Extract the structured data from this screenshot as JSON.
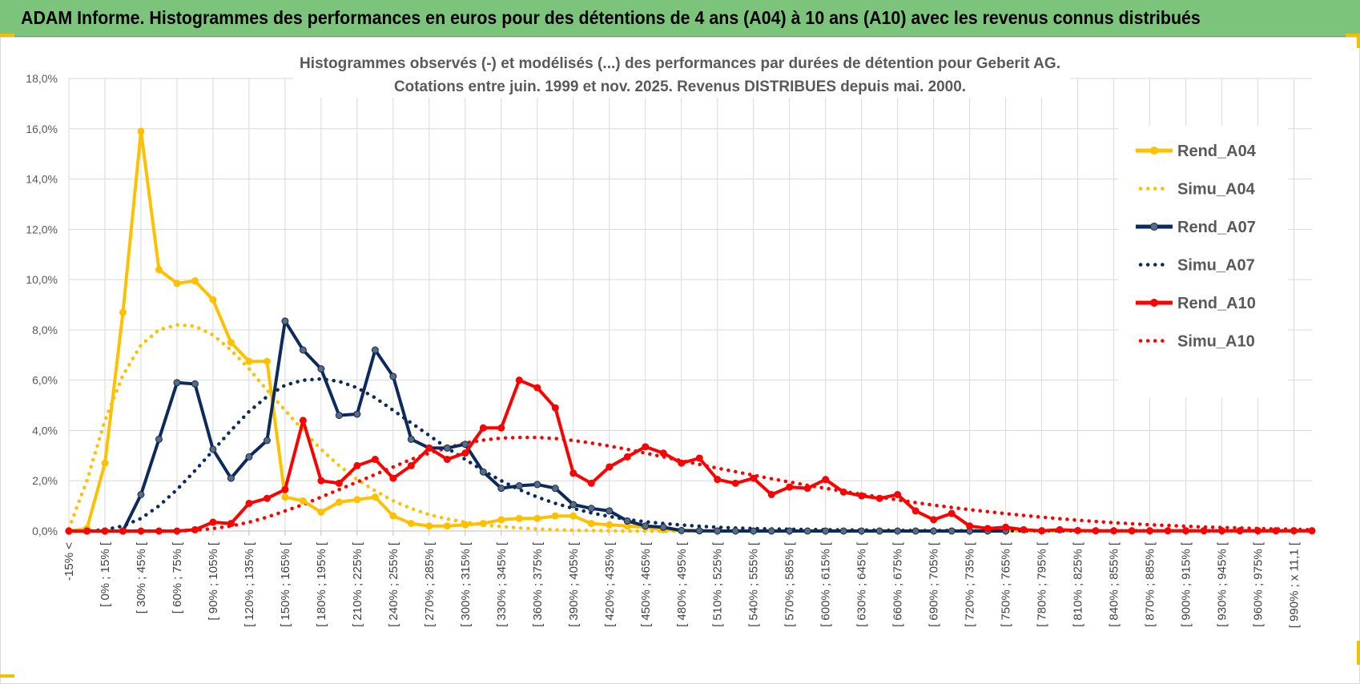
{
  "header": {
    "title": "ADAM Informe. Histogrammes des performances en euros pour des détentions de 4 ans (A04) à 10 ans (A10) avec les revenus connus distribués"
  },
  "colors": {
    "banner": "#7cc47b",
    "Rend_A04": "#ffc000",
    "Simu_A04": "#ffc000",
    "Rend_A07": "#0d2a5c",
    "Simu_A07": "#0d2a5c",
    "Rend_A10": "#ff0000",
    "Simu_A10": "#ff0000",
    "grid": "#d9d9d9"
  },
  "chart_data": {
    "type": "line",
    "title": "Histogrammes observés (-) et modélisés (...) des performances par durées de détention pour Geberit AG.",
    "subtitle": "Cotations entre juin. 1999 et nov. 2025. Revenus DISTRIBUES depuis mai. 2000.",
    "xlabel": "",
    "ylabel": "",
    "ylim": [
      0,
      18
    ],
    "yticks": [
      "0,0%",
      "2,0%",
      "4,0%",
      "6,0%",
      "8,0%",
      "10,0%",
      "12,0%",
      "14,0%",
      "16,0%",
      "18,0%"
    ],
    "grid": true,
    "legend_position": "right",
    "x_tick_labels": [
      "-15% <",
      "[ 0% ; 15% [",
      "[ 30% ; 45% [",
      "[ 60% ; 75% [",
      "[ 90% ; 105% [",
      "[ 120% ; 135% [",
      "[ 150% ; 165% [",
      "[ 180% ; 195% [",
      "[ 210% ; 225% [",
      "[ 240% ; 255% [",
      "[ 270% ; 285% [",
      "[ 300% ; 315% [",
      "[ 330% ; 345% [",
      "[ 360% ; 375% [",
      "[ 390% ; 405% [",
      "[ 420% ; 435% [",
      "[ 450% ; 465% [",
      "[ 480% ; 495% [",
      "[ 510% ; 525% [",
      "[ 540% ; 555% [",
      "[ 570% ; 585% [",
      "[ 600% ; 615% [",
      "[ 630% ; 645% [",
      "[ 660% ; 675% [",
      "[ 690% ; 705% [",
      "[ 720% ; 735% [",
      "[ 750% ; 765% [",
      "[ 780% ; 795% [",
      "[ 810% ; 825% [",
      "[ 840% ; 855% [",
      "[ 870% ; 885% [",
      "[ 900% ; 915% [",
      "[ 930% ; 945% [",
      "[ 960% ; 975% [",
      "[ 990% ; x 11,1 ["
    ],
    "category_count": 70,
    "series": [
      {
        "name": "Rend_A04",
        "style": "solid",
        "markers": true,
        "values": [
          0,
          0.1,
          2.7,
          8.7,
          15.9,
          10.4,
          9.85,
          9.95,
          9.2,
          7.5,
          6.75,
          6.75,
          1.35,
          1.2,
          0.75,
          1.15,
          1.25,
          1.35,
          0.6,
          0.3,
          0.2,
          0.2,
          0.25,
          0.3,
          0.45,
          0.5,
          0.5,
          0.6,
          0.6,
          0.3,
          0.25,
          0.2,
          0.15,
          0.05,
          0.02,
          0.01
        ]
      },
      {
        "name": "Simu_A04",
        "style": "dotted",
        "markers": false,
        "values": [
          0.1,
          2.0,
          4.4,
          6.2,
          7.4,
          8.0,
          8.2,
          8.15,
          7.8,
          7.2,
          6.45,
          5.6,
          4.8,
          4.0,
          3.25,
          2.6,
          2.05,
          1.6,
          1.2,
          0.9,
          0.65,
          0.48,
          0.35,
          0.25,
          0.18,
          0.12,
          0.08,
          0.05,
          0.03,
          0.02,
          0.01,
          0,
          0,
          0,
          0,
          0,
          0,
          0,
          0,
          0,
          0,
          0,
          0,
          0,
          0,
          0,
          0,
          0,
          0,
          0,
          0,
          0,
          0,
          0,
          0,
          0,
          0,
          0,
          0,
          0,
          0,
          0,
          0,
          0,
          0,
          0,
          0,
          0,
          0,
          0
        ]
      },
      {
        "name": "Rend_A07",
        "style": "solid",
        "markers": true,
        "values": [
          0,
          0,
          0,
          0,
          1.45,
          3.65,
          5.9,
          5.85,
          3.25,
          2.1,
          2.95,
          3.6,
          8.35,
          7.2,
          6.45,
          4.6,
          4.65,
          7.2,
          6.15,
          3.65,
          3.3,
          3.3,
          3.45,
          2.35,
          1.7,
          1.8,
          1.85,
          1.7,
          1.05,
          0.9,
          0.8,
          0.4,
          0.2,
          0.15,
          0.02,
          0.01,
          0,
          0,
          0,
          0,
          0,
          0,
          0,
          0,
          0,
          0,
          0,
          0,
          0,
          0,
          0,
          0,
          0
        ]
      },
      {
        "name": "Simu_A07",
        "style": "dotted",
        "markers": false,
        "values": [
          0,
          0,
          0.05,
          0.2,
          0.5,
          1.0,
          1.65,
          2.4,
          3.2,
          4.0,
          4.75,
          5.35,
          5.8,
          6.0,
          6.05,
          5.95,
          5.7,
          5.3,
          4.8,
          4.3,
          3.8,
          3.3,
          2.85,
          2.4,
          2.0,
          1.65,
          1.35,
          1.1,
          0.9,
          0.72,
          0.58,
          0.46,
          0.37,
          0.3,
          0.24,
          0.19,
          0.15,
          0.12,
          0.1,
          0.08,
          0.07,
          0.06,
          0.05,
          0.04,
          0.04,
          0.03,
          0.03,
          0.02,
          0.02,
          0.02,
          0.01,
          0.01,
          0.01,
          0.01,
          0.01,
          0.01,
          0.01,
          0.01,
          0.01,
          0.01,
          0.01,
          0.01,
          0.01,
          0.01,
          0.01,
          0.01,
          0.01,
          0.01,
          0.01,
          0.01
        ]
      },
      {
        "name": "Rend_A10",
        "style": "solid",
        "markers": true,
        "values": [
          0,
          0,
          0,
          0,
          0,
          0,
          0,
          0.05,
          0.35,
          0.3,
          1.1,
          1.3,
          1.65,
          4.4,
          2.0,
          1.9,
          2.6,
          2.85,
          2.1,
          2.6,
          3.3,
          2.85,
          3.1,
          4.1,
          4.1,
          6.0,
          5.7,
          4.9,
          2.3,
          1.9,
          2.55,
          2.95,
          3.35,
          3.1,
          2.7,
          2.9,
          2.05,
          1.9,
          2.1,
          1.45,
          1.75,
          1.7,
          2.05,
          1.55,
          1.4,
          1.3,
          1.45,
          0.8,
          0.45,
          0.7,
          0.2,
          0.1,
          0.15,
          0.05,
          0.01,
          0.05,
          0.02,
          0.01,
          0.01,
          0.01,
          0.01,
          0.01,
          0.01,
          0.01,
          0.01,
          0.01,
          0.01,
          0.01,
          0.01,
          0.01
        ]
      },
      {
        "name": "Simu_A10",
        "style": "dotted",
        "markers": false,
        "values": [
          0,
          0,
          0,
          0,
          0,
          0,
          0,
          0.03,
          0.1,
          0.2,
          0.35,
          0.55,
          0.8,
          1.05,
          1.35,
          1.65,
          1.95,
          2.25,
          2.55,
          2.85,
          3.1,
          3.3,
          3.5,
          3.62,
          3.7,
          3.72,
          3.72,
          3.68,
          3.6,
          3.5,
          3.38,
          3.25,
          3.1,
          2.95,
          2.8,
          2.65,
          2.5,
          2.36,
          2.22,
          2.08,
          1.95,
          1.82,
          1.7,
          1.58,
          1.46,
          1.35,
          1.24,
          1.13,
          1.03,
          0.94,
          0.85,
          0.77,
          0.69,
          0.62,
          0.55,
          0.49,
          0.43,
          0.38,
          0.33,
          0.29,
          0.25,
          0.22,
          0.19,
          0.16,
          0.14,
          0.12,
          0.1,
          0.08,
          0.07,
          0.05
        ]
      }
    ]
  }
}
